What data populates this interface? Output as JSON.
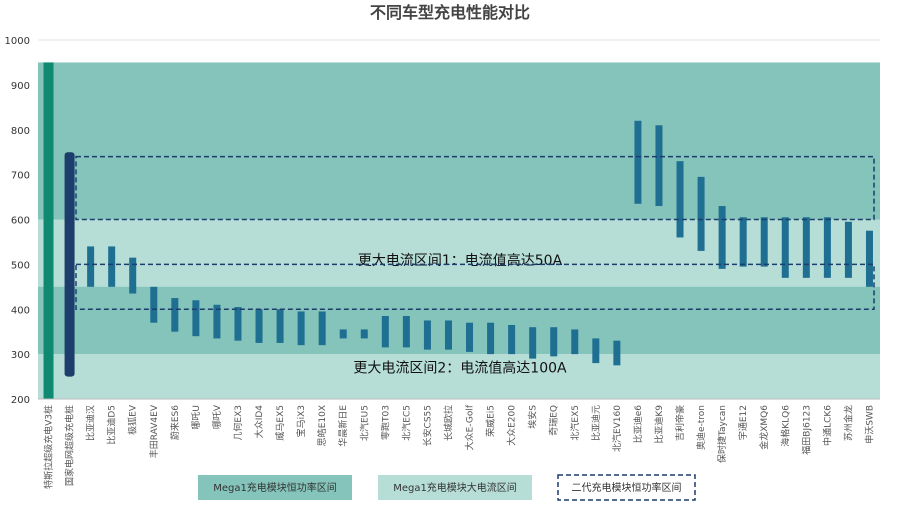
{
  "chart_data": {
    "type": "range_bar",
    "title": "不同车型充电性能对比",
    "categories": [
      "特斯拉超级充电V3桩",
      "国家电网超级充电桩",
      "比亚迪汉",
      "比亚迪D5",
      "极狐EV",
      "丰田RAV4EV",
      "蔚来ES6",
      "哪吒U",
      "哪吒V",
      "几何EX3",
      "大众ID4",
      "威马EX5",
      "宝马iX3",
      "思皓E10X",
      "华晨新日E",
      "北汽EU5",
      "零跑T03",
      "北汽EC5",
      "长安CS55",
      "长城欧拉",
      "大众E-Golf",
      "荣威Ei5",
      "大众E200",
      "埃安S",
      "奇瑞EQ",
      "北汽EX5",
      "比亚迪元",
      "北汽EV160",
      "比亚迪e6",
      "比亚迪K9",
      "吉利帝豪",
      "奥迪e-tron",
      "保时捷Taycan",
      "宇通E12",
      "金龙XMQ6",
      "海格KLQ6",
      "福田BJ6123",
      "中通LCK6",
      "苏州金龙",
      "申沃SWB"
    ],
    "low": [
      200,
      250,
      450,
      450,
      435,
      370,
      350,
      340,
      335,
      330,
      325,
      325,
      320,
      320,
      335,
      335,
      315,
      315,
      310,
      310,
      305,
      300,
      300,
      290,
      295,
      300,
      280,
      275,
      635,
      630,
      560,
      530,
      490,
      495,
      495,
      470,
      470,
      470,
      470,
      450
    ],
    "high": [
      950,
      750,
      540,
      540,
      515,
      450,
      425,
      420,
      410,
      405,
      400,
      400,
      395,
      395,
      355,
      355,
      385,
      385,
      375,
      375,
      370,
      370,
      365,
      360,
      360,
      355,
      335,
      330,
      820,
      810,
      730,
      695,
      630,
      605,
      605,
      605,
      605,
      605,
      595,
      575
    ],
    "colors": [
      "#0f8a71",
      "#1d3d6c",
      "#1f6f93",
      "#1f6f93",
      "#1f6f93",
      "#1f6f93",
      "#1f6f93",
      "#1f6f93",
      "#1f6f93",
      "#1f6f93",
      "#1f6f93",
      "#1f6f93",
      "#1f6f93",
      "#1f6f93",
      "#1f6f93",
      "#1f6f93",
      "#1f6f93",
      "#1f6f93",
      "#1f6f93",
      "#1f6f93",
      "#1f6f93",
      "#1f6f93",
      "#1f6f93",
      "#1f6f93",
      "#1f6f93",
      "#1f6f93",
      "#1f6f93",
      "#1f6f93",
      "#1f6f93",
      "#1f6f93",
      "#1f6f93",
      "#1f6f93",
      "#1f6f93",
      "#1f6f93",
      "#1f6f93",
      "#1f6f93",
      "#1f6f93",
      "#1f6f93",
      "#1f6f93",
      "#1f6f93"
    ],
    "ylim": [
      200,
      1000
    ],
    "yticks": [
      200,
      300,
      400,
      500,
      600,
      700,
      800,
      900,
      1000
    ],
    "grid": true,
    "regions": [
      {
        "name": "Mega1充电模块恒功率区间",
        "color": "#84c4ba",
        "style": "fill",
        "ranges": [
          [
            300,
            950
          ]
        ]
      },
      {
        "name": "Mega1充电模块大电流区间",
        "color": "#b6ded7",
        "style": "fill",
        "ranges": [
          [
            450,
            600
          ],
          [
            200,
            300
          ]
        ]
      },
      {
        "name": "二代充电模块恒功率区间",
        "color": "#1d3d6c",
        "style": "dashed",
        "ranges": [
          [
            600,
            740
          ],
          [
            400,
            500
          ]
        ]
      }
    ],
    "annotations": [
      {
        "text": "更大电流区间1：电流值高达50A",
        "y": 510
      },
      {
        "text": "更大电流区间2：电流值高达100A",
        "y": 270
      }
    ]
  }
}
